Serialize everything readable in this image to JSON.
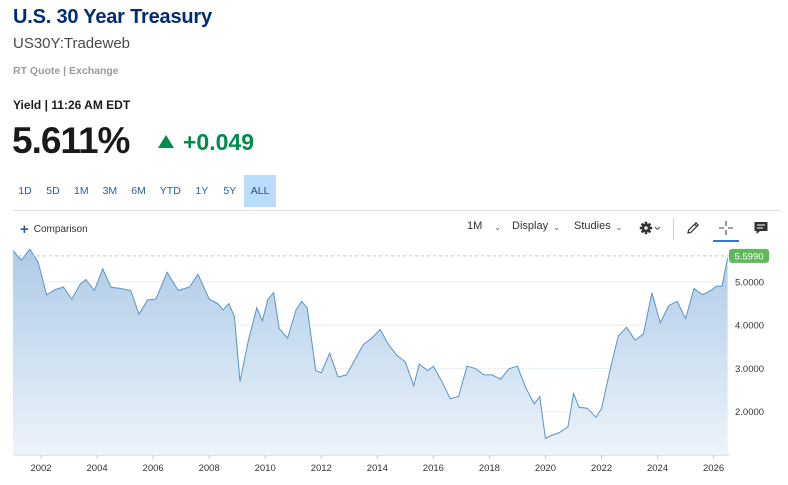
{
  "header": {
    "title": "U.S. 30 Year Treasury",
    "symbol": "US30Y:Tradeweb",
    "quote_source": "RT Quote | Exchange",
    "yield_time": "Yield | 11:26 AM EDT",
    "price": "5.611%",
    "change": "+0.049",
    "change_color": "#008c4a"
  },
  "ranges": {
    "items": [
      "1D",
      "5D",
      "1M",
      "3M",
      "6M",
      "YTD",
      "1Y",
      "5Y",
      "ALL"
    ],
    "active": "ALL"
  },
  "toolbar": {
    "comparison_label": "Comparison",
    "interval_label": "1M",
    "display_label": "Display",
    "studies_label": "Studies"
  },
  "chart_data": {
    "type": "area",
    "title": "",
    "xlabel": "",
    "ylabel": "",
    "x_ticks": [
      "2002",
      "2004",
      "2006",
      "2008",
      "2010",
      "2012",
      "2014",
      "2016",
      "2018",
      "2020",
      "2022",
      "2024",
      "2026"
    ],
    "y_ticks": [
      "2.0000",
      "3.0000",
      "4.0000",
      "5.0000"
    ],
    "ylim": [
      1.0,
      5.85
    ],
    "xlim": [
      2001.0,
      2026.55
    ],
    "last_value_label": "5.5990",
    "last_value": 5.599,
    "grid": "horizontal",
    "line_color": "#5b93c7",
    "series": [
      {
        "x": [
          2001.0,
          2001.3,
          2001.6,
          2001.9,
          2002.2,
          2002.5,
          2002.8,
          2003.1,
          2003.4,
          2003.6,
          2003.9,
          2004.2,
          2004.5,
          2004.8,
          2005.2,
          2005.5,
          2005.8,
          2006.1,
          2006.5,
          2006.9,
          2007.3,
          2007.6,
          2008.0,
          2008.3,
          2008.5,
          2008.7,
          2008.9,
          2009.1,
          2009.4,
          2009.7,
          2009.9,
          2010.1,
          2010.3,
          2010.5,
          2010.8,
          2011.1,
          2011.3,
          2011.5,
          2011.8,
          2012.0,
          2012.3,
          2012.6,
          2012.9,
          2013.2,
          2013.5,
          2013.8,
          2014.1,
          2014.4,
          2014.7,
          2015.0,
          2015.3,
          2015.5,
          2015.8,
          2016.0,
          2016.3,
          2016.6,
          2016.9,
          2017.2,
          2017.5,
          2017.8,
          2018.1,
          2018.4,
          2018.7,
          2019.0,
          2019.3,
          2019.6,
          2019.8,
          2020.0,
          2020.2,
          2020.5,
          2020.8,
          2021.0,
          2021.2,
          2021.5,
          2021.8,
          2022.0,
          2022.3,
          2022.6,
          2022.9,
          2023.2,
          2023.5,
          2023.8,
          2024.1,
          2024.4,
          2024.7,
          2025.0,
          2025.3,
          2025.6,
          2025.9,
          2026.1,
          2026.3,
          2026.5
        ],
        "y": [
          5.72,
          5.5,
          5.75,
          5.45,
          4.7,
          4.82,
          4.88,
          4.6,
          4.95,
          5.05,
          4.8,
          5.3,
          4.87,
          4.85,
          4.8,
          4.25,
          4.58,
          4.6,
          5.22,
          4.8,
          4.88,
          5.17,
          4.6,
          4.5,
          4.35,
          4.5,
          4.2,
          2.7,
          3.65,
          4.4,
          4.1,
          4.6,
          4.75,
          3.92,
          3.7,
          4.35,
          4.55,
          4.4,
          2.95,
          2.9,
          3.35,
          2.8,
          2.85,
          3.2,
          3.55,
          3.7,
          3.9,
          3.55,
          3.3,
          3.15,
          2.6,
          3.1,
          2.95,
          3.05,
          2.7,
          2.3,
          2.35,
          3.05,
          3.0,
          2.85,
          2.85,
          2.75,
          2.99,
          3.05,
          2.55,
          2.18,
          2.35,
          1.38,
          1.45,
          1.52,
          1.65,
          2.42,
          2.1,
          2.08,
          1.87,
          2.07,
          2.95,
          3.75,
          3.95,
          3.65,
          3.8,
          4.75,
          4.05,
          4.45,
          4.55,
          4.15,
          4.85,
          4.7,
          4.8,
          4.9,
          4.9,
          5.55
        ]
      }
    ]
  }
}
